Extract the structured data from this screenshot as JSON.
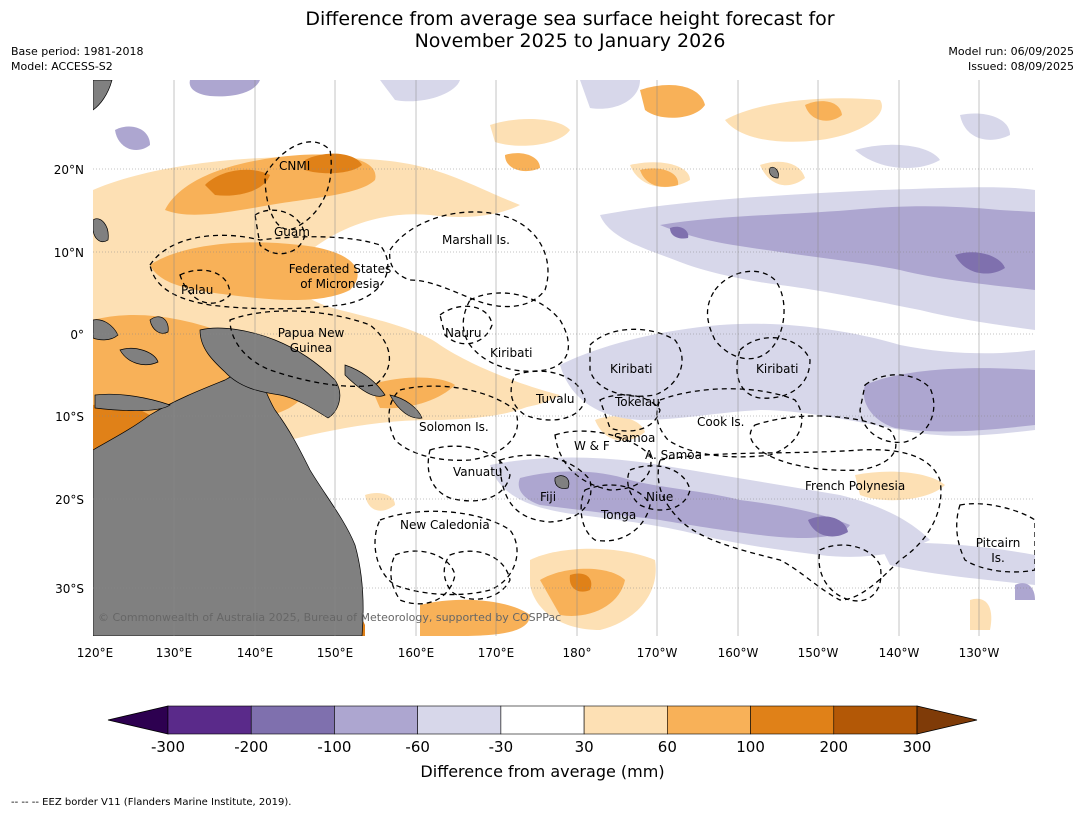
{
  "title_line1": "Difference from average sea surface height forecast for",
  "title_line2": "November 2025 to January 2026",
  "meta_left": [
    "Base period: 1981-2018",
    "Model: ACCESS-S2"
  ],
  "meta_right": [
    "Model run: 06/09/2025",
    "Issued: 08/09/2025"
  ],
  "lat_ticks": [
    "20°N",
    "10°N",
    "0°",
    "10°S",
    "20°S",
    "30°S"
  ],
  "lon_ticks": [
    "120°E",
    "130°E",
    "140°E",
    "150°E",
    "160°E",
    "170°E",
    "180°",
    "170°W",
    "160°W",
    "150°W",
    "140°W",
    "130°W"
  ],
  "places": {
    "cnmi": "CNMI",
    "guam": "Guam",
    "marshall": "Marshall Is.",
    "fsm1": "Federated States",
    "fsm2": "of Micronesia",
    "palau": "Palau",
    "png1": "Papua New",
    "png2": "Guinea",
    "nauru": "Nauru",
    "kiribati_w": "Kiribati",
    "kiribati_c": "Kiribati",
    "kiribati_e": "Kiribati",
    "tuvalu": "Tuvalu",
    "tokelau": "Tokelau",
    "cook": "Cook Is.",
    "solomon": "Solomon Is.",
    "samoa": "Samoa",
    "wf": "W & F",
    "asamoa": "A. Samoa",
    "vanuatu": "Vanuatu",
    "fiji": "Fiji",
    "niue": "Niue",
    "tonga": "Tonga",
    "frpoly": "French Polynesia",
    "newcal": "New Caledonia",
    "pitcairn1": "Pitcairn",
    "pitcairn2": "Is."
  },
  "credit": "© Commonwealth of Australia 2025, Bureau of Meteorology, supported by COSPPac",
  "colorbar": {
    "ticks": [
      "-300",
      "-200",
      "-100",
      "-60",
      "-30",
      "30",
      "60",
      "100",
      "200",
      "300"
    ],
    "colors": [
      "#5a2a8a",
      "#7f70ae",
      "#ada6d0",
      "#d7d7ea",
      "#ffffff",
      "#fde0b4",
      "#f8b158",
      "#e08118",
      "#b35806"
    ],
    "under_color": "#2d0050",
    "over_color": "#7f3b08",
    "label": "Difference from average (mm)"
  },
  "map_colors": {
    "land": "#808080",
    "ocean": "#ffffff"
  },
  "footnote": "--  --  -- EEZ border V11 (Flanders Marine Institute, 2019)."
}
